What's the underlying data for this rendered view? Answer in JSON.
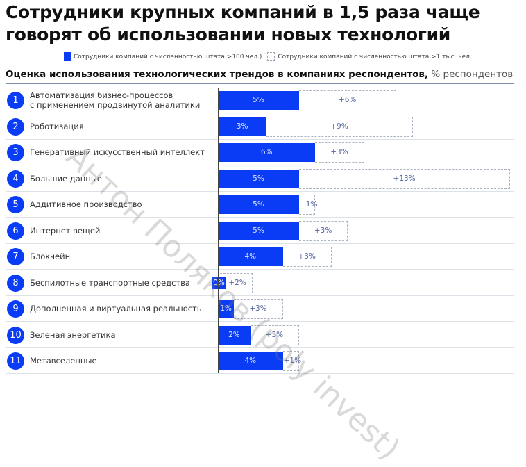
{
  "title_line1": "Сотрудники крупных компаний в 1,5 раза чаще",
  "title_line2": "говорят об использовании новых технологий",
  "legend": {
    "solid": "Сотрудники компаний с численностью штата >100 чел.)",
    "dashed": "Сотрудники компаний с численностью штата >1 тыс. чел."
  },
  "subtitle_bold": "Оценка использования технологических трендов в компаниях респондентов,",
  "subtitle_unit": " % респондентов",
  "watermark": "Антон Поляков (poly invest)",
  "colors": {
    "bar": "#0a3cf5",
    "dash": "#a9b1c2",
    "badge": "#0a3cf5"
  },
  "chart_data": {
    "type": "bar",
    "orientation": "horizontal",
    "stacked": true,
    "title": "Сотрудники крупных компаний в 1,5 раза чаще говорят об использовании новых технологий",
    "subtitle": "Оценка использования технологических трендов в компаниях респондентов, % респондентов",
    "xlabel": "",
    "ylabel": "",
    "unit": "%",
    "categories": [
      "Автоматизация бизнес-процессов с применением продвинутой аналитики",
      "Роботизация",
      "Генеративный искусственный интеллект",
      "Большие данные",
      "Аддитивное производство",
      "Интернет вещей",
      "Блокчейн",
      "Беспилотные транспортные средства",
      "Дополненная и виртуальная реальность",
      "Зеленая энергетика",
      "Метавселенные"
    ],
    "series": [
      {
        "name": "Сотрудники компаний с численностью штата >100 чел.",
        "style": "solid",
        "values": [
          5,
          3,
          6,
          5,
          5,
          5,
          4,
          0,
          1,
          2,
          4
        ]
      },
      {
        "name": "Сотрудники компаний с численностью штата >1 тыс. чел. (прирост)",
        "style": "dashed",
        "values": [
          6,
          9,
          3,
          13,
          1,
          3,
          3,
          2,
          3,
          3,
          1
        ]
      }
    ],
    "totals_large_companies": [
      11,
      12,
      9,
      18,
      6,
      8,
      7,
      2,
      4,
      5,
      5
    ],
    "legend_position": "top",
    "grid": false
  },
  "rows": [
    {
      "num": "1",
      "label1": "Автоматизация бизнес-процессов",
      "label2": "с применением продвинутой аналитики",
      "base": "5%",
      "inc": "+6%",
      "b": 5,
      "d": 6
    },
    {
      "num": "2",
      "label1": "Роботизация",
      "base": "3%",
      "inc": "+9%",
      "b": 3,
      "d": 9
    },
    {
      "num": "3",
      "label1": "Генеративный искусственный интеллект",
      "base": "6%",
      "inc": "+3%",
      "b": 6,
      "d": 3
    },
    {
      "num": "4",
      "label1": "Большие данные",
      "base": "5%",
      "inc": "+13%",
      "b": 5,
      "d": 13
    },
    {
      "num": "5",
      "label1": "Аддитивное производство",
      "base": "5%",
      "inc": "+1%",
      "b": 5,
      "d": 1
    },
    {
      "num": "6",
      "label1": "Интернет вещей",
      "base": "5%",
      "inc": "+3%",
      "b": 5,
      "d": 3
    },
    {
      "num": "7",
      "label1": "Блокчейн",
      "base": "4%",
      "inc": "+3%",
      "b": 4,
      "d": 3
    },
    {
      "num": "8",
      "label1": "Беспилотные транспортные средства",
      "base": "0%",
      "inc": "+2%",
      "b": 0,
      "d": 2
    },
    {
      "num": "9",
      "label1": "Дополненная и виртуальная реальность",
      "base": "1%",
      "inc": "+3%",
      "b": 1,
      "d": 3
    },
    {
      "num": "10",
      "label1": "Зеленая энергетика",
      "base": "2%",
      "inc": "+3%",
      "b": 2,
      "d": 3
    },
    {
      "num": "11",
      "label1": "Метавселенные",
      "base": "4%",
      "inc": "+1%",
      "b": 4,
      "d": 1
    }
  ]
}
